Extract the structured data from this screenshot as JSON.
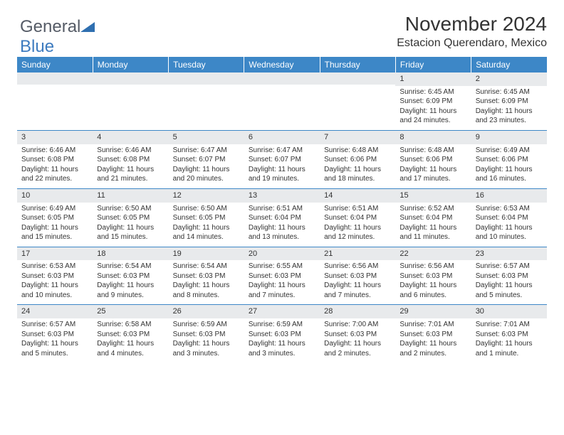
{
  "logo": {
    "text1": "General",
    "text2": "Blue"
  },
  "title": "November 2024",
  "location": "Estacion Querendaro, Mexico",
  "colors": {
    "header_bg": "#3d87c7",
    "header_text": "#ffffff",
    "daynum_bg": "#e8eaec",
    "border": "#3d87c7",
    "body_text": "#333333"
  },
  "day_headers": [
    "Sunday",
    "Monday",
    "Tuesday",
    "Wednesday",
    "Thursday",
    "Friday",
    "Saturday"
  ],
  "weeks": [
    [
      {
        "n": "",
        "sr": "",
        "ss": "",
        "dl": ""
      },
      {
        "n": "",
        "sr": "",
        "ss": "",
        "dl": ""
      },
      {
        "n": "",
        "sr": "",
        "ss": "",
        "dl": ""
      },
      {
        "n": "",
        "sr": "",
        "ss": "",
        "dl": ""
      },
      {
        "n": "",
        "sr": "",
        "ss": "",
        "dl": ""
      },
      {
        "n": "1",
        "sr": "Sunrise: 6:45 AM",
        "ss": "Sunset: 6:09 PM",
        "dl": "Daylight: 11 hours and 24 minutes."
      },
      {
        "n": "2",
        "sr": "Sunrise: 6:45 AM",
        "ss": "Sunset: 6:09 PM",
        "dl": "Daylight: 11 hours and 23 minutes."
      }
    ],
    [
      {
        "n": "3",
        "sr": "Sunrise: 6:46 AM",
        "ss": "Sunset: 6:08 PM",
        "dl": "Daylight: 11 hours and 22 minutes."
      },
      {
        "n": "4",
        "sr": "Sunrise: 6:46 AM",
        "ss": "Sunset: 6:08 PM",
        "dl": "Daylight: 11 hours and 21 minutes."
      },
      {
        "n": "5",
        "sr": "Sunrise: 6:47 AM",
        "ss": "Sunset: 6:07 PM",
        "dl": "Daylight: 11 hours and 20 minutes."
      },
      {
        "n": "6",
        "sr": "Sunrise: 6:47 AM",
        "ss": "Sunset: 6:07 PM",
        "dl": "Daylight: 11 hours and 19 minutes."
      },
      {
        "n": "7",
        "sr": "Sunrise: 6:48 AM",
        "ss": "Sunset: 6:06 PM",
        "dl": "Daylight: 11 hours and 18 minutes."
      },
      {
        "n": "8",
        "sr": "Sunrise: 6:48 AM",
        "ss": "Sunset: 6:06 PM",
        "dl": "Daylight: 11 hours and 17 minutes."
      },
      {
        "n": "9",
        "sr": "Sunrise: 6:49 AM",
        "ss": "Sunset: 6:06 PM",
        "dl": "Daylight: 11 hours and 16 minutes."
      }
    ],
    [
      {
        "n": "10",
        "sr": "Sunrise: 6:49 AM",
        "ss": "Sunset: 6:05 PM",
        "dl": "Daylight: 11 hours and 15 minutes."
      },
      {
        "n": "11",
        "sr": "Sunrise: 6:50 AM",
        "ss": "Sunset: 6:05 PM",
        "dl": "Daylight: 11 hours and 15 minutes."
      },
      {
        "n": "12",
        "sr": "Sunrise: 6:50 AM",
        "ss": "Sunset: 6:05 PM",
        "dl": "Daylight: 11 hours and 14 minutes."
      },
      {
        "n": "13",
        "sr": "Sunrise: 6:51 AM",
        "ss": "Sunset: 6:04 PM",
        "dl": "Daylight: 11 hours and 13 minutes."
      },
      {
        "n": "14",
        "sr": "Sunrise: 6:51 AM",
        "ss": "Sunset: 6:04 PM",
        "dl": "Daylight: 11 hours and 12 minutes."
      },
      {
        "n": "15",
        "sr": "Sunrise: 6:52 AM",
        "ss": "Sunset: 6:04 PM",
        "dl": "Daylight: 11 hours and 11 minutes."
      },
      {
        "n": "16",
        "sr": "Sunrise: 6:53 AM",
        "ss": "Sunset: 6:04 PM",
        "dl": "Daylight: 11 hours and 10 minutes."
      }
    ],
    [
      {
        "n": "17",
        "sr": "Sunrise: 6:53 AM",
        "ss": "Sunset: 6:03 PM",
        "dl": "Daylight: 11 hours and 10 minutes."
      },
      {
        "n": "18",
        "sr": "Sunrise: 6:54 AM",
        "ss": "Sunset: 6:03 PM",
        "dl": "Daylight: 11 hours and 9 minutes."
      },
      {
        "n": "19",
        "sr": "Sunrise: 6:54 AM",
        "ss": "Sunset: 6:03 PM",
        "dl": "Daylight: 11 hours and 8 minutes."
      },
      {
        "n": "20",
        "sr": "Sunrise: 6:55 AM",
        "ss": "Sunset: 6:03 PM",
        "dl": "Daylight: 11 hours and 7 minutes."
      },
      {
        "n": "21",
        "sr": "Sunrise: 6:56 AM",
        "ss": "Sunset: 6:03 PM",
        "dl": "Daylight: 11 hours and 7 minutes."
      },
      {
        "n": "22",
        "sr": "Sunrise: 6:56 AM",
        "ss": "Sunset: 6:03 PM",
        "dl": "Daylight: 11 hours and 6 minutes."
      },
      {
        "n": "23",
        "sr": "Sunrise: 6:57 AM",
        "ss": "Sunset: 6:03 PM",
        "dl": "Daylight: 11 hours and 5 minutes."
      }
    ],
    [
      {
        "n": "24",
        "sr": "Sunrise: 6:57 AM",
        "ss": "Sunset: 6:03 PM",
        "dl": "Daylight: 11 hours and 5 minutes."
      },
      {
        "n": "25",
        "sr": "Sunrise: 6:58 AM",
        "ss": "Sunset: 6:03 PM",
        "dl": "Daylight: 11 hours and 4 minutes."
      },
      {
        "n": "26",
        "sr": "Sunrise: 6:59 AM",
        "ss": "Sunset: 6:03 PM",
        "dl": "Daylight: 11 hours and 3 minutes."
      },
      {
        "n": "27",
        "sr": "Sunrise: 6:59 AM",
        "ss": "Sunset: 6:03 PM",
        "dl": "Daylight: 11 hours and 3 minutes."
      },
      {
        "n": "28",
        "sr": "Sunrise: 7:00 AM",
        "ss": "Sunset: 6:03 PM",
        "dl": "Daylight: 11 hours and 2 minutes."
      },
      {
        "n": "29",
        "sr": "Sunrise: 7:01 AM",
        "ss": "Sunset: 6:03 PM",
        "dl": "Daylight: 11 hours and 2 minutes."
      },
      {
        "n": "30",
        "sr": "Sunrise: 7:01 AM",
        "ss": "Sunset: 6:03 PM",
        "dl": "Daylight: 11 hours and 1 minute."
      }
    ]
  ]
}
